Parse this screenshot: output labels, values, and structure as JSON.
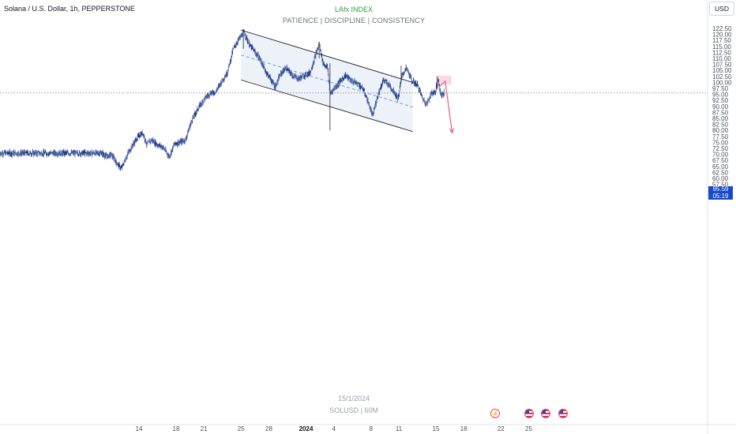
{
  "header": {
    "symbol_title": "Solana / U.S. Dollar, 1h, PEPPERSTONE",
    "currency_button": "USD"
  },
  "watermark": {
    "brand": "LAfx INDEX",
    "motto": "PATIENCE  |  DISCIPLINE  |  CONSISTENCY",
    "date": "15/1/2024",
    "symbol": "SOLUSD | 60M"
  },
  "last_price": {
    "price": "95.59",
    "countdown": "05:19"
  },
  "colors": {
    "candle": "#1e3a8a",
    "channel_fill": "#eaf0f8",
    "channel_line": "#1f2128",
    "midline": "#6d8fd6",
    "supply_zone": "#f7d4da",
    "projection_arrow": "#e0566e",
    "price_line": "#7c8ba8",
    "price_tag": "#1848cc"
  },
  "event_icons": [
    "lightning-icon",
    "us-flag-icon",
    "us-flag-icon",
    "us-flag-icon"
  ],
  "chart_data": {
    "type": "candlestick",
    "timeframe": "1h",
    "y_range": [
      57.5,
      122.5
    ],
    "y_ticks": [
      "122.50",
      "120.00",
      "117.50",
      "115.00",
      "112.50",
      "110.00",
      "107.50",
      "105.00",
      "102.50",
      "100.00",
      "97.50",
      "95.00",
      "92.50",
      "90.00",
      "87.50",
      "85.00",
      "82.50",
      "80.00",
      "77.50",
      "75.00",
      "72.50",
      "70.00",
      "67.50",
      "65.00",
      "62.50",
      "60.00",
      "57.50"
    ],
    "x_range": [
      "2023-12-10",
      "2023-12-26"
    ],
    "x_ticks": [
      {
        "label": "14",
        "date": "2023-12-14"
      },
      {
        "label": "18",
        "date": "2023-12-18"
      },
      {
        "label": "21",
        "date": "2023-12-21"
      },
      {
        "label": "25",
        "date": "2023-12-25"
      },
      {
        "label": "28",
        "date": "2023-12-28"
      },
      {
        "label": "2024",
        "date": "2024-01-01",
        "bold": true
      },
      {
        "label": "4",
        "date": "2024-01-04"
      },
      {
        "label": "8",
        "date": "2024-01-08"
      },
      {
        "label": "11",
        "date": "2024-01-11"
      },
      {
        "label": "15",
        "date": "2024-01-15"
      },
      {
        "label": "18",
        "date": "2024-01-18"
      },
      {
        "label": "22",
        "date": "2024-01-22"
      },
      {
        "label": "25",
        "date": "2024-01-25"
      }
    ],
    "price_path": [
      [
        "2023-12-10 00:00",
        70.5
      ],
      [
        "2023-12-10 12:00",
        69.0
      ],
      [
        "2023-12-11 00:00",
        70.0
      ],
      [
        "2023-12-11 14:00",
        66.5
      ],
      [
        "2023-12-12 02:00",
        64.0
      ],
      [
        "2023-12-12 18:00",
        70.0
      ],
      [
        "2023-12-13 08:00",
        74.0
      ],
      [
        "2023-12-13 22:00",
        77.5
      ],
      [
        "2023-12-14 10:00",
        79.0
      ],
      [
        "2023-12-14 20:00",
        74.0
      ],
      [
        "2023-12-15 08:00",
        76.0
      ],
      [
        "2023-12-16 00:00",
        74.0
      ],
      [
        "2023-12-16 14:00",
        73.0
      ],
      [
        "2023-12-17 06:00",
        69.0
      ],
      [
        "2023-12-17 20:00",
        74.5
      ],
      [
        "2023-12-18 10:00",
        75.0
      ],
      [
        "2023-12-19 00:00",
        76.0
      ],
      [
        "2023-12-19 16:00",
        84.0
      ],
      [
        "2023-12-20 08:00",
        89.0
      ],
      [
        "2023-12-21 00:00",
        93.0
      ],
      [
        "2023-12-21 16:00",
        95.5
      ],
      [
        "2023-12-22 06:00",
        96.0
      ],
      [
        "2023-12-22 20:00",
        100.0
      ],
      [
        "2023-12-23 12:00",
        104.0
      ],
      [
        "2023-12-24 04:00",
        114.0
      ],
      [
        "2023-12-24 18:00",
        118.0
      ],
      [
        "2023-12-25 08:00",
        121.0
      ],
      [
        "2023-12-25 20:00",
        116.0
      ],
      [
        "2023-12-26 10:00",
        113.0
      ],
      [
        "2023-12-27 00:00",
        110.0
      ],
      [
        "2023-12-27 14:00",
        105.0
      ],
      [
        "2023-12-28 04:00",
        101.5
      ],
      [
        "2023-12-28 16:00",
        98.0
      ],
      [
        "2023-12-29 06:00",
        103.5
      ],
      [
        "2023-12-29 20:00",
        106.0
      ],
      [
        "2023-12-30 12:00",
        103.0
      ],
      [
        "2023-12-31 04:00",
        101.5
      ],
      [
        "2023-12-31 20:00",
        103.0
      ],
      [
        "2024-01-01 10:00",
        104.0
      ],
      [
        "2024-01-02 00:00",
        111.0
      ],
      [
        "2024-01-02 10:00",
        116.0
      ],
      [
        "2024-01-02 20:00",
        108.0
      ],
      [
        "2024-01-03 08:00",
        106.0
      ],
      [
        "2024-01-03 14:00",
        95.0
      ],
      [
        "2024-01-03 22:00",
        97.0
      ],
      [
        "2024-01-04 14:00",
        100.0
      ],
      [
        "2024-01-05 06:00",
        103.0
      ],
      [
        "2024-01-05 22:00",
        100.5
      ],
      [
        "2024-01-06 14:00",
        99.5
      ],
      [
        "2024-01-07 04:00",
        97.0
      ],
      [
        "2024-01-07 16:00",
        92.0
      ],
      [
        "2024-01-08 04:00",
        86.0
      ],
      [
        "2024-01-08 18:00",
        95.0
      ],
      [
        "2024-01-09 08:00",
        101.0
      ],
      [
        "2024-01-09 22:00",
        99.0
      ],
      [
        "2024-01-10 12:00",
        96.0
      ],
      [
        "2024-01-10 22:00",
        93.0
      ],
      [
        "2024-01-11 08:00",
        103.0
      ],
      [
        "2024-01-11 20:00",
        106.0
      ],
      [
        "2024-01-12 10:00",
        100.5
      ],
      [
        "2024-01-13 00:00",
        99.0
      ],
      [
        "2024-01-13 14:00",
        93.0
      ],
      [
        "2024-01-14 00:00",
        91.0
      ],
      [
        "2024-01-14 12:00",
        95.5
      ],
      [
        "2024-01-14 22:00",
        96.0
      ],
      [
        "2024-01-15 06:00",
        101.5
      ],
      [
        "2024-01-15 12:00",
        95.0
      ],
      [
        "2024-01-15 22:00",
        95.59
      ]
    ],
    "spikes": [
      {
        "time": "2024-01-03 14:00",
        "high": 108.0,
        "low": 80.0
      },
      {
        "time": "2023-12-25 06:00",
        "high": 122.0,
        "low": 114.0
      },
      {
        "time": "2024-01-02 10:00",
        "high": 117.0,
        "low": 110.0
      },
      {
        "time": "2024-01-11 06:00",
        "high": 107.0,
        "low": 101.0
      },
      {
        "time": "2024-01-15 04:00",
        "high": 102.5,
        "low": 97.0
      }
    ],
    "drawings": {
      "channel_upper": [
        [
          "2023-12-25 00:00",
          121.8
        ],
        [
          "2024-01-12 12:00",
          100.0
        ]
      ],
      "channel_lower": [
        [
          "2023-12-25 00:00",
          101.0
        ],
        [
          "2024-01-12 12:00",
          79.5
        ]
      ],
      "channel_mid": [
        [
          "2023-12-25 00:00",
          111.4
        ],
        [
          "2024-01-12 12:00",
          89.75
        ]
      ],
      "supply_zone": {
        "time_from": "2024-01-15 00:00",
        "time_to": "2024-01-16 16:00",
        "price_from": 99.0,
        "price_to": 102.8
      },
      "projection": [
        [
          "2024-01-15 08:00",
          98.0
        ],
        [
          "2024-01-16 00:00",
          100.5
        ],
        [
          "2024-01-16 18:00",
          79.0
        ]
      ]
    },
    "last_price": 95.59
  }
}
